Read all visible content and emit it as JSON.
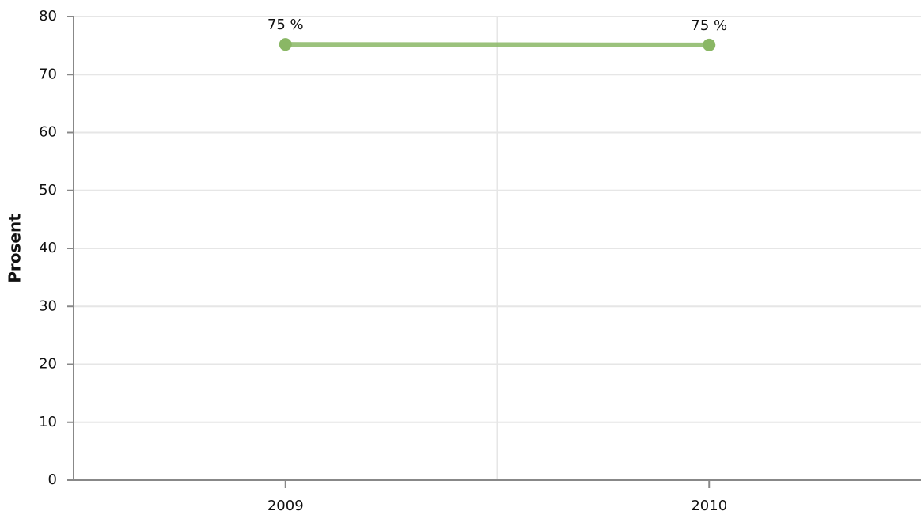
{
  "chart_data": {
    "type": "line",
    "y_label": "Prosent",
    "categories": [
      "2009",
      "2010"
    ],
    "series": [
      {
        "name": "Prosent",
        "color": "#8ab765",
        "values": [
          75.2,
          75.1
        ],
        "value_labels": [
          "75 %",
          "75 %"
        ]
      }
    ],
    "ylim": [
      0,
      80
    ],
    "yticks": [
      0,
      10,
      20,
      30,
      40,
      50,
      60,
      70,
      80
    ],
    "grid": true
  }
}
